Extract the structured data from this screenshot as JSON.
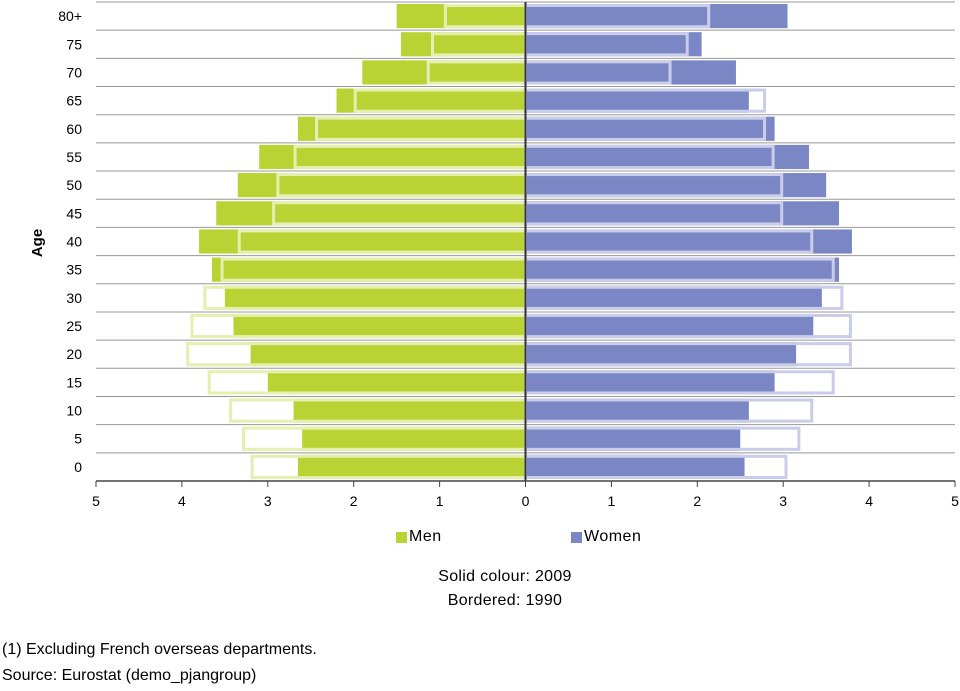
{
  "chart_data": {
    "type": "bar",
    "orientation": "horizontal-population-pyramid",
    "ylabel": "Age",
    "xlim": [
      -5,
      5
    ],
    "x_ticks": [
      "5",
      "4",
      "3",
      "2",
      "1",
      "0",
      "1",
      "2",
      "3",
      "4",
      "5"
    ],
    "categories": [
      "80+",
      "75",
      "70",
      "65",
      "60",
      "55",
      "50",
      "45",
      "40",
      "35",
      "30",
      "25",
      "20",
      "15",
      "10",
      "5",
      "0"
    ],
    "series": [
      {
        "name": "Men",
        "year": "2009",
        "style": "solid",
        "values": [
          1.5,
          1.45,
          1.9,
          2.2,
          2.65,
          3.1,
          3.35,
          3.6,
          3.8,
          3.65,
          3.5,
          3.4,
          3.2,
          3.0,
          2.7,
          2.6,
          2.65
        ]
      },
      {
        "name": "Women",
        "year": "2009",
        "style": "solid",
        "values": [
          3.05,
          2.05,
          2.45,
          2.6,
          2.9,
          3.3,
          3.5,
          3.65,
          3.8,
          3.65,
          3.45,
          3.35,
          3.15,
          2.9,
          2.6,
          2.5,
          2.55
        ]
      },
      {
        "name": "Men",
        "year": "1990",
        "style": "bordered",
        "values": [
          0.95,
          1.1,
          1.15,
          2.0,
          2.45,
          2.7,
          2.9,
          2.95,
          3.35,
          3.55,
          3.75,
          3.9,
          3.95,
          3.7,
          3.45,
          3.3,
          3.2
        ]
      },
      {
        "name": "Women",
        "year": "1990",
        "style": "bordered",
        "values": [
          2.15,
          1.9,
          1.7,
          2.8,
          2.8,
          2.9,
          3.0,
          3.0,
          3.35,
          3.6,
          3.7,
          3.8,
          3.8,
          3.6,
          3.35,
          3.2,
          3.05
        ]
      }
    ],
    "legend": [
      "Men",
      "Women"
    ],
    "legend_position": "bottom",
    "annotation_lines": [
      "Solid colour: 2009",
      "Bordered: 1990"
    ],
    "grid": "horizontal"
  },
  "colors": {
    "men_solid": "#b9d334",
    "women_solid": "#7b86c4",
    "men_border": "#e4efb0",
    "women_border": "#c9cde9",
    "grid": "#555555"
  },
  "legend": {
    "men": "Men",
    "women": "Women"
  },
  "caption": {
    "line1": "Solid colour: 2009",
    "line2": "Bordered: 1990"
  },
  "footnotes": {
    "note": "(1) Excluding French overseas departments.",
    "source": "Source: Eurostat (demo_pjangroup)"
  }
}
